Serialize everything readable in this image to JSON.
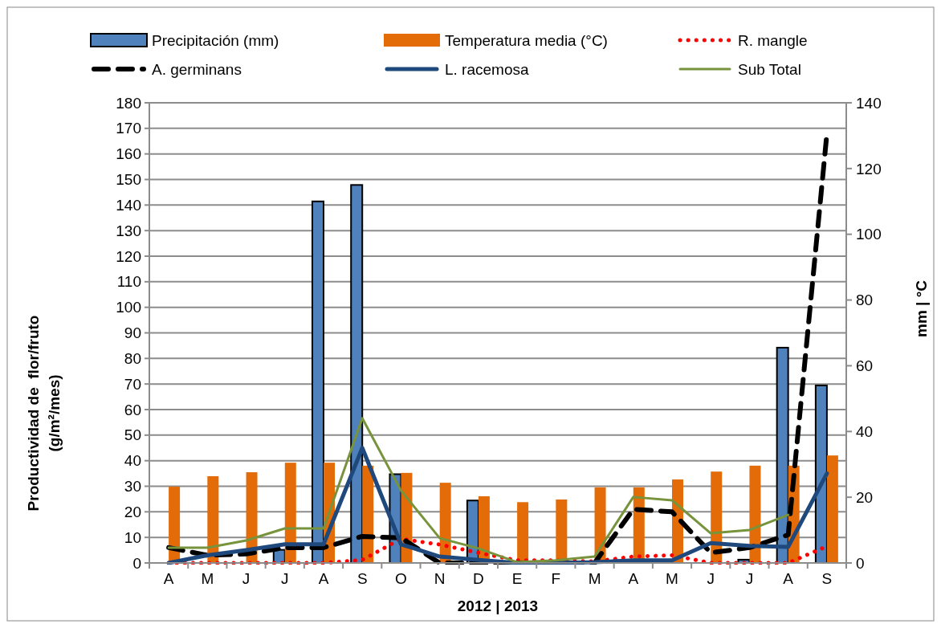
{
  "chart_data": {
    "type": "bar",
    "categories": [
      "A",
      "M",
      "J",
      "J",
      "A",
      "S",
      "O",
      "N",
      "D",
      "E",
      "F",
      "M",
      "A",
      "M",
      "J",
      "J",
      "A",
      "S"
    ],
    "xlabel": "2012 | 2013",
    "ylabel": "Productividad de  flor/fruto\n(g/m²/mes)",
    "y2label": "mm | °C",
    "ylim": [
      0,
      180
    ],
    "yticks": [
      0,
      10,
      20,
      30,
      40,
      50,
      60,
      70,
      80,
      90,
      100,
      110,
      120,
      130,
      140,
      150,
      160,
      170,
      180
    ],
    "y2lim": [
      0,
      140
    ],
    "y2ticks": [
      0,
      20,
      40,
      60,
      80,
      100,
      120,
      140
    ],
    "grid": "y",
    "legend": "top",
    "series": [
      {
        "name": "Precipitación (mm)",
        "axis": "y2",
        "color": "#4f81bd",
        "values": [
          0,
          0,
          0,
          4,
          110,
          115,
          27,
          0,
          19,
          0,
          0,
          0,
          0,
          0,
          0,
          1,
          65.5,
          54
        ]
      },
      {
        "name": "Temperatura media (°C)",
        "axis": "y2",
        "color": "#e36c09",
        "values": [
          23.2,
          26.4,
          27.6,
          30.5,
          30.5,
          29.6,
          27.4,
          24.4,
          20.3,
          18.5,
          19.3,
          23,
          23,
          25.4,
          27.8,
          29.6,
          29.6,
          32.7
        ]
      },
      {
        "name": "R. mangle",
        "type": "line",
        "line_style": "dotted",
        "color": "#ff0000",
        "values": [
          0,
          0,
          0,
          0,
          0,
          1.2,
          9.4,
          7.2,
          4,
          1,
          1,
          0.6,
          2.5,
          3,
          0,
          0,
          0,
          6.5
        ]
      },
      {
        "name": "A. germinans",
        "type": "line",
        "line_style": "dashed",
        "color": "#000000",
        "values": [
          6,
          3,
          3.5,
          6,
          6,
          10.4,
          9.8,
          0,
          0,
          0,
          0,
          0,
          21,
          20,
          4,
          6,
          11,
          168
        ]
      },
      {
        "name": "L. racemosa",
        "type": "line",
        "line_style": "solid",
        "color": "#1f497d",
        "values": [
          0,
          3,
          5,
          7.3,
          7.3,
          45,
          7.3,
          2.5,
          1.2,
          0,
          0,
          0.3,
          1,
          1,
          7.8,
          6.7,
          6.3,
          35
        ]
      },
      {
        "name": "Sub Total",
        "type": "line",
        "line_style": "solid",
        "color": "#77933c",
        "values": [
          6,
          6,
          8.8,
          13.5,
          13.5,
          56.6,
          28.3,
          9.7,
          5.7,
          0.3,
          1,
          2.5,
          25.8,
          24.5,
          11.6,
          12.9,
          18.8,
          null
        ]
      }
    ]
  }
}
